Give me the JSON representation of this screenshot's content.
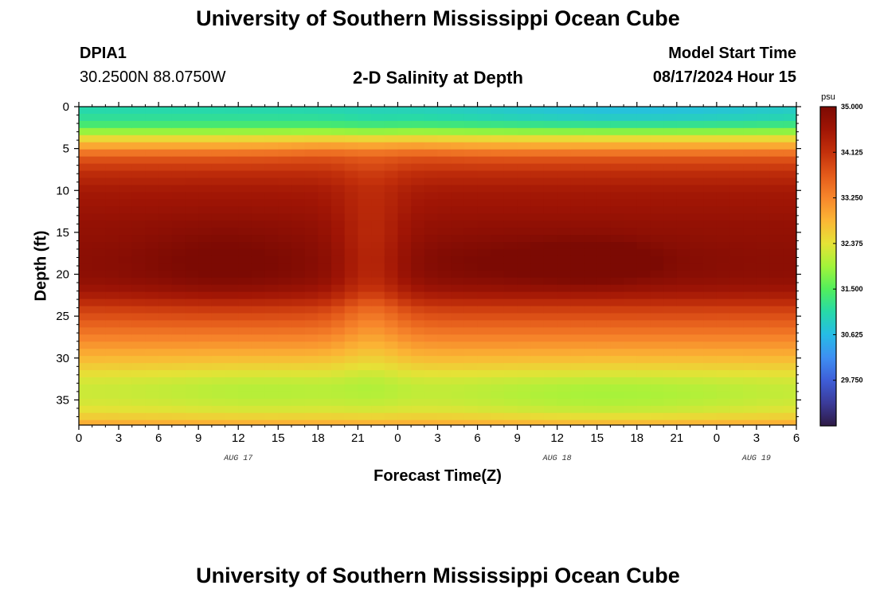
{
  "page": {
    "title": "University of Southern Mississippi Ocean Cube",
    "title_repeat": "University of Southern Mississippi Ocean Cube",
    "station_id": "DPIA1",
    "coordinates": "30.2500N  88.0750W",
    "model_start_label": "Model Start Time",
    "model_start_value": "08/17/2024 Hour 15"
  },
  "chart_data": {
    "type": "heatmap",
    "title": "2-D Salinity at Depth",
    "xlabel": "Forecast Time(Z)",
    "ylabel": "Depth (ft)",
    "x_ticks": [
      "0",
      "3",
      "6",
      "9",
      "12",
      "15",
      "18",
      "21",
      "0",
      "3",
      "6",
      "9",
      "12",
      "15",
      "18",
      "21",
      "0",
      "3",
      "6"
    ],
    "x_range_hours": [
      0,
      54
    ],
    "date_labels": [
      {
        "text": "AUG 17",
        "hour": 12
      },
      {
        "text": "AUG 18",
        "hour": 36
      },
      {
        "text": "AUG 19",
        "hour": 51
      }
    ],
    "y_ticks": [
      "0",
      "5",
      "10",
      "15",
      "20",
      "25",
      "30",
      "35"
    ],
    "y_range_ft": [
      0,
      38
    ],
    "colorbar": {
      "unit": "psu",
      "min": 28.875,
      "max": 35.0,
      "ticks": [
        "35.000",
        "34.125",
        "33.250",
        "32.375",
        "31.500",
        "30.625",
        "29.750"
      ],
      "tick_values": [
        35.0,
        34.125,
        33.25,
        32.375,
        31.5,
        30.625,
        29.75
      ],
      "colors": [
        "#2e1a45",
        "#3b3b99",
        "#3e5ed8",
        "#3e8ff2",
        "#26bce6",
        "#27d9a8",
        "#52ee5c",
        "#a2f43a",
        "#e5e236",
        "#fbb635",
        "#f7862b",
        "#e45a1a",
        "#c3300b",
        "#a01505",
        "#7c0a03"
      ]
    },
    "salinity_psu_by_depth": {
      "depths_ft": [
        0,
        1,
        2,
        3,
        4,
        5,
        6,
        7,
        8,
        9,
        10,
        11,
        12,
        13,
        14,
        15,
        16,
        17,
        18,
        19,
        20,
        21,
        22,
        23,
        24,
        25,
        26,
        27,
        28,
        29,
        30,
        31,
        32,
        33,
        34,
        35,
        36,
        37,
        38
      ],
      "mean_profile": [
        31.0,
        31.1,
        31.3,
        31.9,
        32.6,
        33.1,
        33.7,
        33.95,
        34.2,
        34.35,
        34.5,
        34.55,
        34.6,
        34.65,
        34.7,
        34.72,
        34.75,
        34.78,
        34.8,
        34.8,
        34.78,
        34.7,
        34.55,
        34.3,
        34.0,
        33.8,
        33.6,
        33.4,
        33.2,
        33.0,
        32.8,
        32.6,
        32.4,
        32.25,
        32.2,
        32.25,
        32.35,
        32.6,
        33.0
      ],
      "notes": "Fresher water at surface (~31.0 psu) and near bottom (~32.2 psu); saltier core near 18-20 ft peaking ~35.0 psu around hour 39."
    }
  }
}
